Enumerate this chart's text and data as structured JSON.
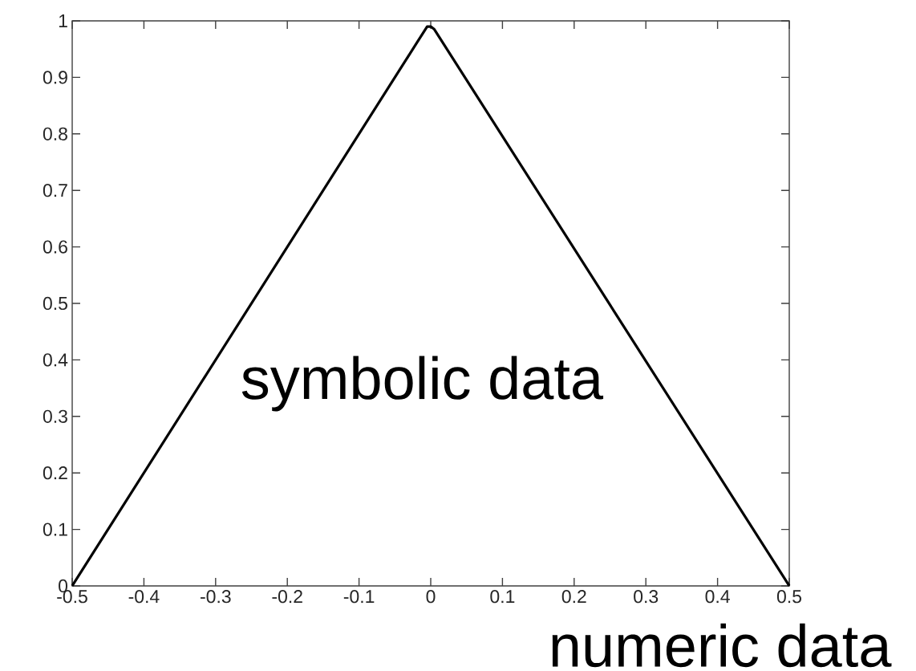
{
  "chart_data": {
    "type": "line",
    "x": [
      -0.5,
      -0.02,
      -0.01,
      -0.005,
      0,
      0.005,
      0.01,
      0.02,
      0.5
    ],
    "values": [
      0,
      0.96,
      0.98,
      0.99,
      0.99,
      0.985,
      0.975,
      0.955,
      0
    ],
    "color": "#000000",
    "line_style": "solid",
    "xlim": [
      -0.5,
      0.5
    ],
    "ylim": [
      0,
      1
    ],
    "xticks": [
      -0.5,
      -0.4,
      -0.3,
      -0.2,
      -0.1,
      0,
      0.1,
      0.2,
      0.3,
      0.4,
      0.5
    ],
    "yticks": [
      0,
      0.1,
      0.2,
      0.3,
      0.4,
      0.5,
      0.6,
      0.7,
      0.8,
      0.9,
      1
    ],
    "annotations": [
      "symbolic data",
      "numeric data"
    ]
  }
}
